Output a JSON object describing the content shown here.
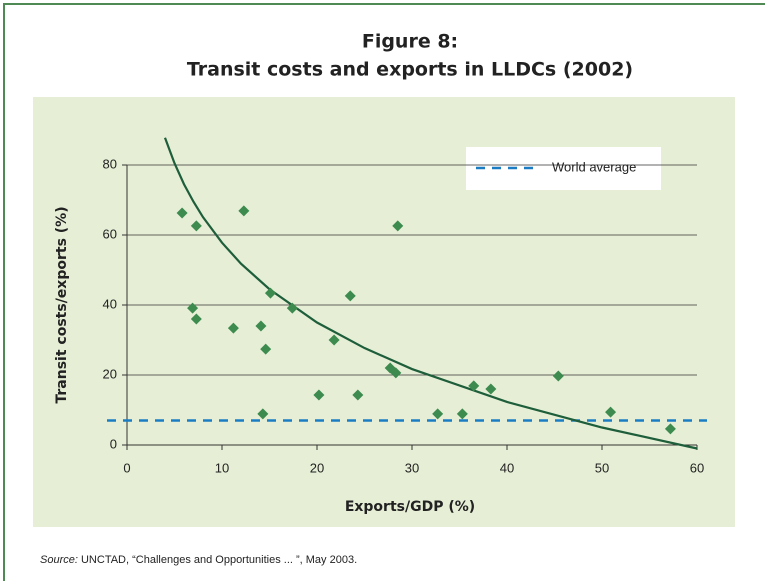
{
  "chart_data": {
    "type": "scatter",
    "title": "Figure 8:",
    "subtitle": "Transit costs and exports in LLDCs (2002)",
    "x_label": "Exports/GDP (%)",
    "y_label": "Transit costs/exports (%)",
    "xlim": [
      0,
      60
    ],
    "xticks": [
      0,
      10,
      20,
      30,
      40,
      50,
      60
    ],
    "ylim": [
      0,
      80
    ],
    "yticks": [
      0,
      20,
      40,
      60,
      80
    ],
    "grid": true,
    "color": "#3d8b4e",
    "x": [
      5.8,
      7.3,
      12.3,
      6.9,
      7.3,
      11.2,
      14.1,
      14.6,
      15.1,
      17.4,
      14.3,
      20.2,
      21.8,
      23.5,
      24.3,
      27.7,
      28.3,
      28.5,
      32.7,
      35.3,
      36.5,
      38.3,
      45.4,
      50.9,
      57.2
    ],
    "values": [
      66.3,
      62.6,
      66.9,
      39.1,
      36,
      33.4,
      34,
      27.4,
      43.4,
      39.1,
      8.9,
      14.3,
      30,
      42.6,
      14.3,
      22,
      20.6,
      62.6,
      8.9,
      8.9,
      16.9,
      16,
      19.7,
      9.4,
      4.6
    ],
    "trend": {
      "color": "#1e5e3a",
      "x": [
        4,
        5,
        6,
        7,
        8,
        10,
        12,
        15,
        20,
        25,
        30,
        40,
        50,
        60
      ],
      "values": [
        87.8,
        80.5,
        74.5,
        69.5,
        65.1,
        57.8,
        51.8,
        44.5,
        35.0,
        27.7,
        21.7,
        12.3,
        5.0,
        -1.0
      ]
    },
    "world_average": {
      "name": "World average",
      "value": 7,
      "color": "#1a7dc4"
    },
    "legend": "upper right",
    "source_label": "Source:",
    "source": "UNCTAD, “Challenges and Opportunities ... ”, May 2003."
  }
}
